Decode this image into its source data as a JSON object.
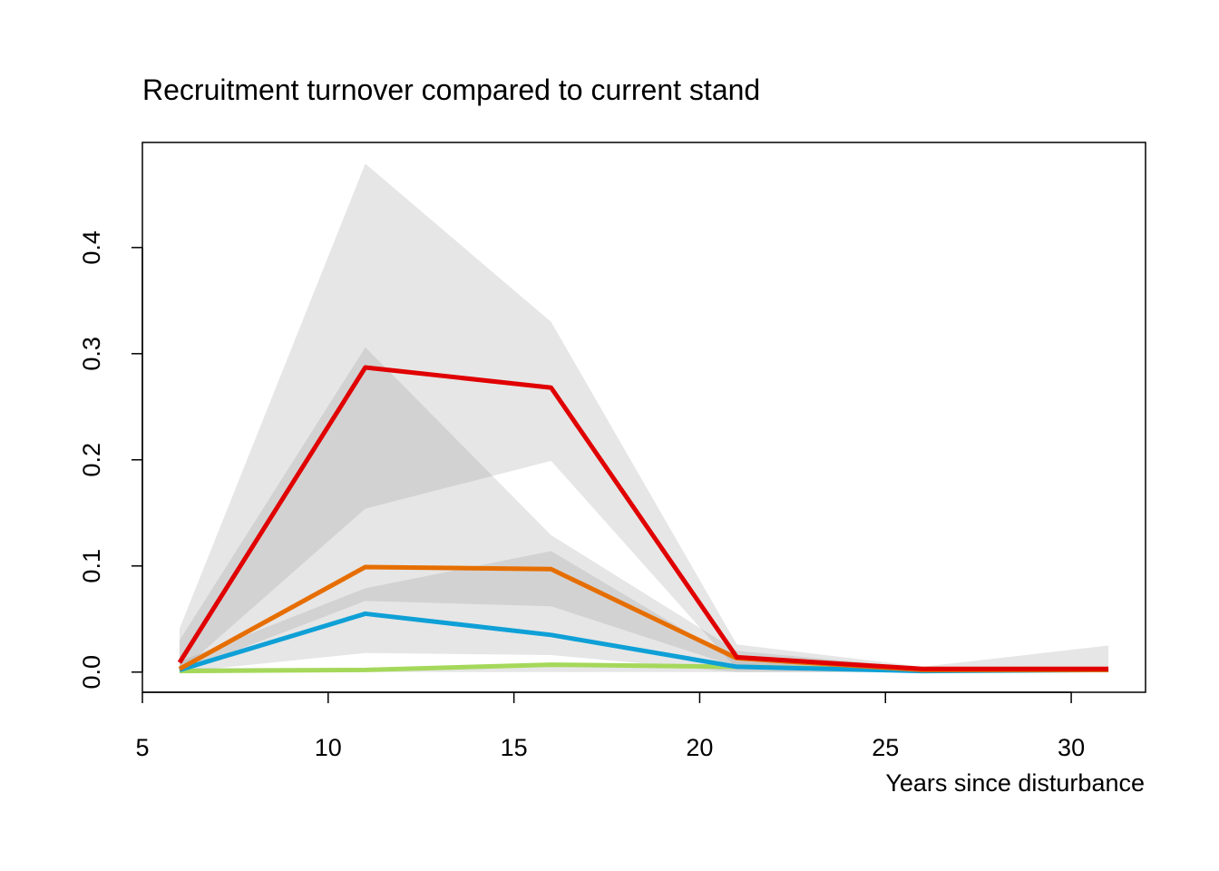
{
  "chart_data": {
    "type": "line",
    "title": "Recruitment turnover compared to current stand",
    "x_label": "Years since disturbance",
    "x": [
      6,
      11,
      16,
      21,
      26,
      31
    ],
    "xlim": [
      5,
      32
    ],
    "xticks": [
      5,
      10,
      15,
      20,
      25,
      30
    ],
    "ylim": [
      -0.019,
      0.499
    ],
    "yticks": [
      {
        "value": 0,
        "label": "0.0"
      },
      0.1,
      0.2,
      0.3,
      0.4
    ],
    "band_color": "rgba(140,140,140,0.22)",
    "series": [
      {
        "color": "#a5d85a",
        "values": [
          0.001,
          0.002,
          0.007,
          0.005,
          0.002,
          0.002
        ],
        "lower": [
          0,
          0,
          0,
          0,
          0,
          0
        ],
        "upper": [
          0.004,
          0.004,
          0.006,
          0.006,
          0.003,
          0.003
        ]
      },
      {
        "color": "#0ea0d6",
        "values": [
          0.002,
          0.055,
          0.035,
          0.005,
          0.001,
          0.002
        ],
        "lower": [
          0,
          0.018,
          0.016,
          0,
          0,
          0
        ],
        "upper": [
          0.01,
          0.079,
          0.114,
          0.01,
          0.002,
          0.003
        ]
      },
      {
        "color": "#e66e00",
        "values": [
          0.003,
          0.099,
          0.097,
          0.013,
          0.002,
          0.002
        ],
        "lower": [
          0,
          0.067,
          0.062,
          0.005,
          0,
          0
        ],
        "upper": [
          0.03,
          0.306,
          0.129,
          0.02,
          0.004,
          0.004
        ]
      },
      {
        "color": "#e00000",
        "values": [
          0.009,
          0.287,
          0.268,
          0.014,
          0.003,
          0.003
        ],
        "lower": [
          0,
          0.154,
          0.199,
          0.003,
          0,
          0
        ],
        "upper": [
          0.041,
          0.479,
          0.33,
          0.026,
          0.005,
          0.025
        ]
      }
    ]
  }
}
